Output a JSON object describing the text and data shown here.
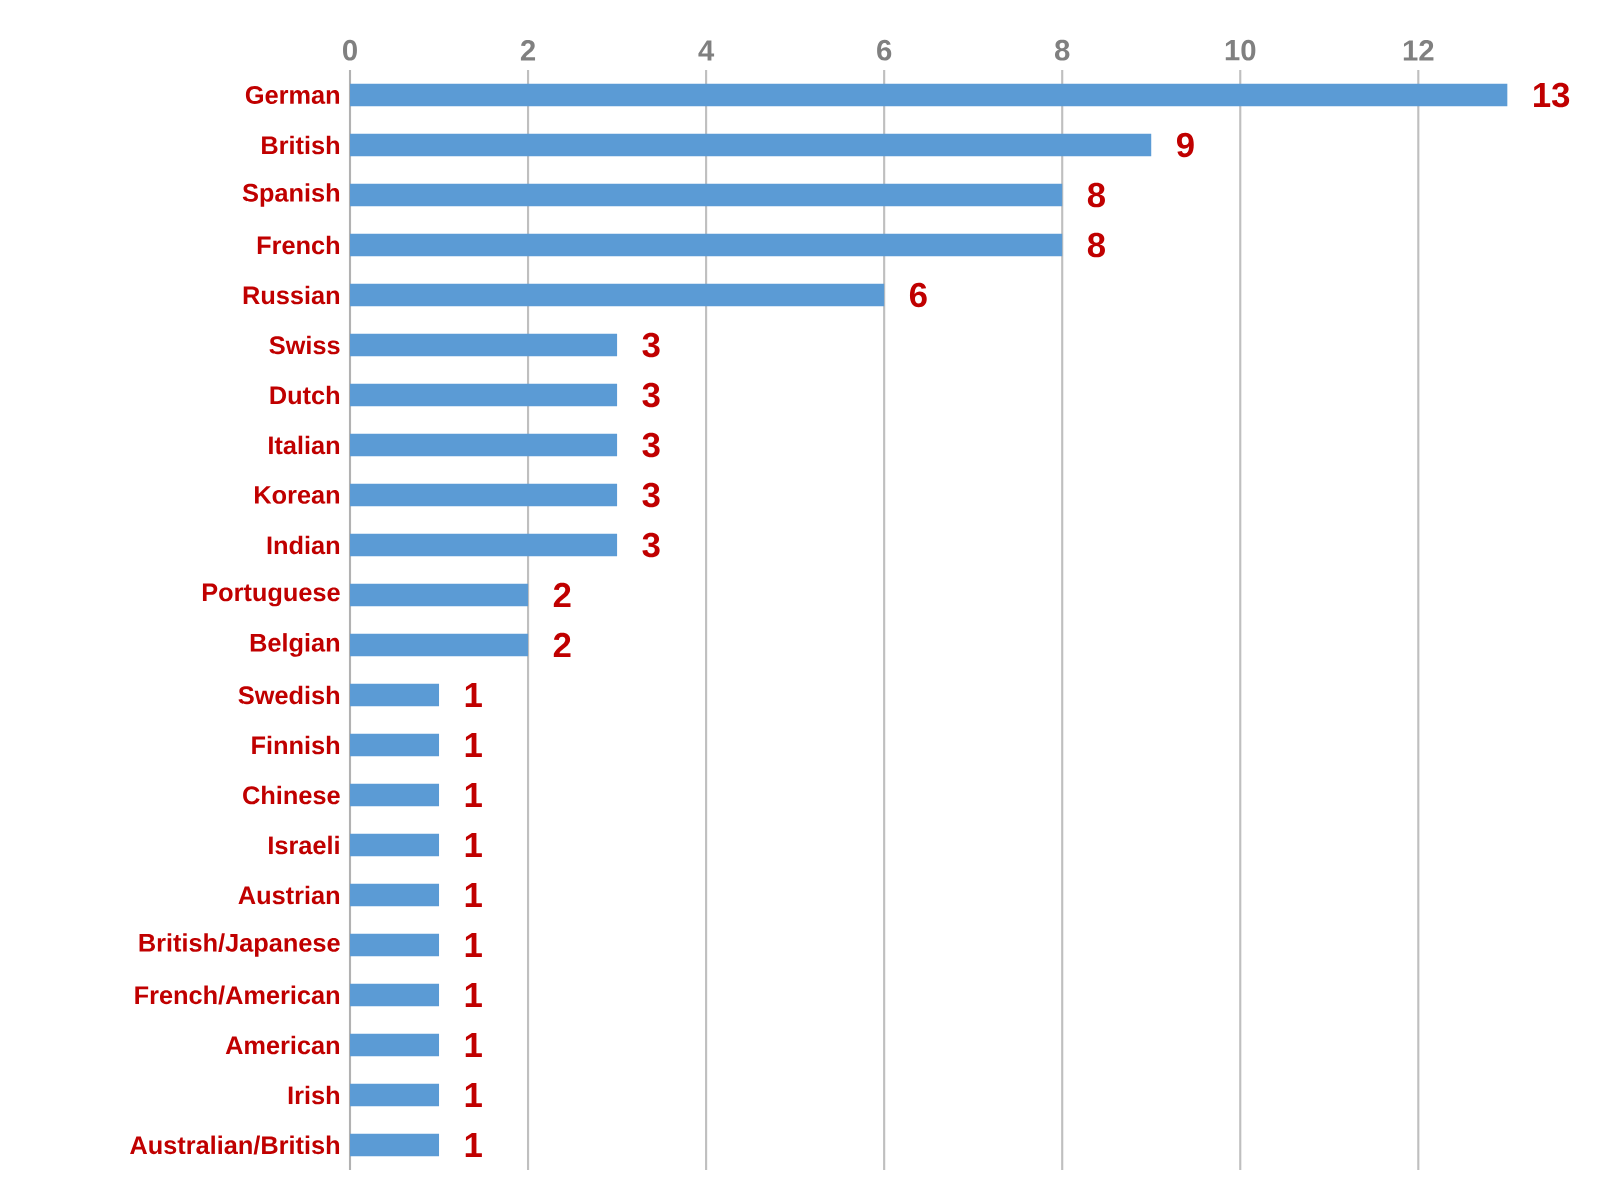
{
  "chart_data": {
    "type": "bar",
    "orientation": "horizontal",
    "categories": [
      "German",
      "British",
      "Spanish",
      "French",
      "Russian",
      "Swiss",
      "Dutch",
      "Italian",
      "Korean",
      "Indian",
      "Portuguese",
      "Belgian",
      "Swedish",
      "Finnish",
      "Chinese",
      "Israeli",
      "Austrian",
      "British/Japanese",
      "French/American",
      "American",
      "Irish",
      "Australian/British"
    ],
    "values": [
      13,
      9,
      8,
      8,
      6,
      3,
      3,
      3,
      3,
      3,
      2,
      2,
      1,
      1,
      1,
      1,
      1,
      1,
      1,
      1,
      1,
      1
    ],
    "color": "#5b9bd5",
    "xlim": [
      0,
      13
    ],
    "xticks": [
      0,
      2,
      4,
      6,
      8,
      10,
      12
    ],
    "grid": "x",
    "data_labels": true
  }
}
